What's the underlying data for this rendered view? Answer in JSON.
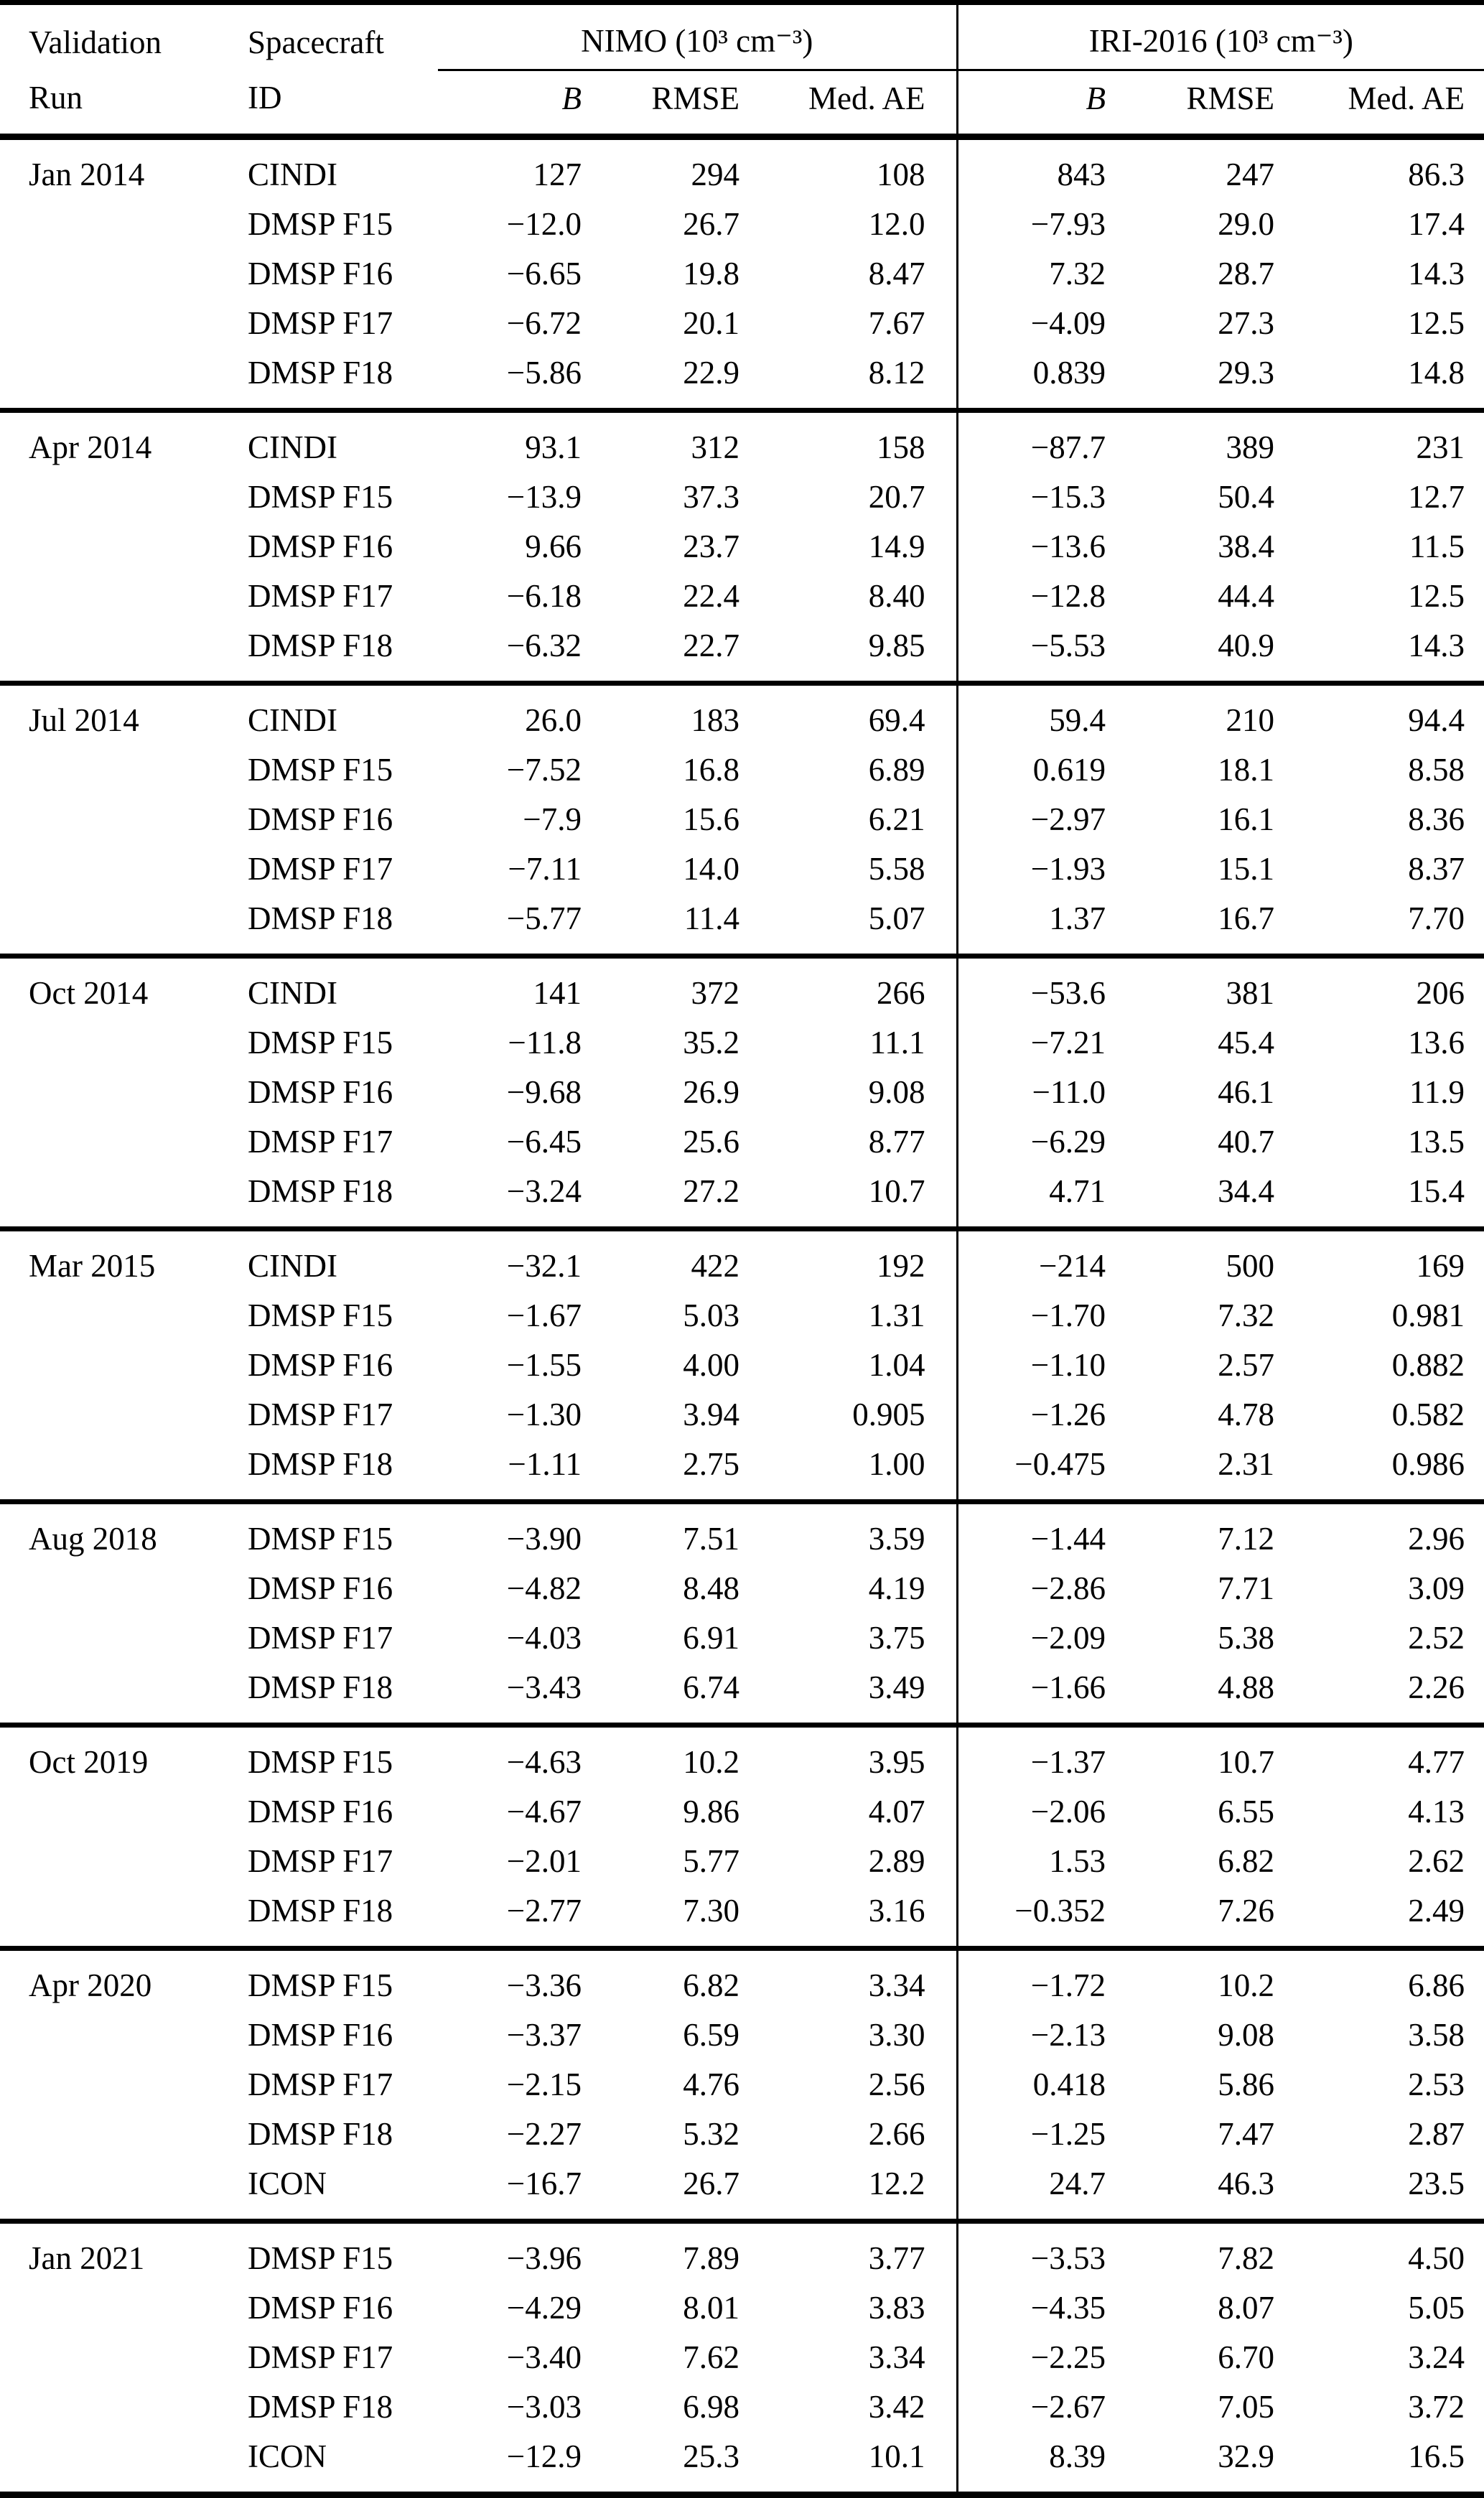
{
  "table": {
    "header": {
      "validation": "Validation",
      "run": "Run",
      "spacecraft": "Spacecraft",
      "id": "ID",
      "nimo_group": "NIMO (10³ cm⁻³)",
      "iri_group": "IRI-2016 (10³ cm⁻³)",
      "sub": [
        "B",
        "RMSE",
        "Med. AE",
        "B",
        "RMSE",
        "Med. AE"
      ]
    },
    "groups": [
      {
        "run": "Jan 2014",
        "rows": [
          {
            "id": "CINDI",
            "nimo": [
              "127",
              "294",
              "108"
            ],
            "iri": [
              "843",
              "247",
              "86.3"
            ]
          },
          {
            "id": "DMSP F15",
            "nimo": [
              "−12.0",
              "26.7",
              "12.0"
            ],
            "iri": [
              "−7.93",
              "29.0",
              "17.4"
            ]
          },
          {
            "id": "DMSP F16",
            "nimo": [
              "−6.65",
              "19.8",
              "8.47"
            ],
            "iri": [
              "7.32",
              "28.7",
              "14.3"
            ]
          },
          {
            "id": "DMSP F17",
            "nimo": [
              "−6.72",
              "20.1",
              "7.67"
            ],
            "iri": [
              "−4.09",
              "27.3",
              "12.5"
            ]
          },
          {
            "id": "DMSP F18",
            "nimo": [
              "−5.86",
              "22.9",
              "8.12"
            ],
            "iri": [
              "0.839",
              "29.3",
              "14.8"
            ]
          }
        ]
      },
      {
        "run": "Apr 2014",
        "rows": [
          {
            "id": "CINDI",
            "nimo": [
              "93.1",
              "312",
              "158"
            ],
            "iri": [
              "−87.7",
              "389",
              "231"
            ]
          },
          {
            "id": "DMSP F15",
            "nimo": [
              "−13.9",
              "37.3",
              "20.7"
            ],
            "iri": [
              "−15.3",
              "50.4",
              "12.7"
            ]
          },
          {
            "id": "DMSP F16",
            "nimo": [
              "9.66",
              "23.7",
              "14.9"
            ],
            "iri": [
              "−13.6",
              "38.4",
              "11.5"
            ]
          },
          {
            "id": "DMSP F17",
            "nimo": [
              "−6.18",
              "22.4",
              "8.40"
            ],
            "iri": [
              "−12.8",
              "44.4",
              "12.5"
            ]
          },
          {
            "id": "DMSP F18",
            "nimo": [
              "−6.32",
              "22.7",
              "9.85"
            ],
            "iri": [
              "−5.53",
              "40.9",
              "14.3"
            ]
          }
        ]
      },
      {
        "run": "Jul 2014",
        "rows": [
          {
            "id": "CINDI",
            "nimo": [
              "26.0",
              "183",
              "69.4"
            ],
            "iri": [
              "59.4",
              "210",
              "94.4"
            ]
          },
          {
            "id": "DMSP F15",
            "nimo": [
              "−7.52",
              "16.8",
              "6.89"
            ],
            "iri": [
              "0.619",
              "18.1",
              "8.58"
            ]
          },
          {
            "id": "DMSP F16",
            "nimo": [
              "−7.9",
              "15.6",
              "6.21"
            ],
            "iri": [
              "−2.97",
              "16.1",
              "8.36"
            ]
          },
          {
            "id": "DMSP F17",
            "nimo": [
              "−7.11",
              "14.0",
              "5.58"
            ],
            "iri": [
              "−1.93",
              "15.1",
              "8.37"
            ]
          },
          {
            "id": "DMSP F18",
            "nimo": [
              "−5.77",
              "11.4",
              "5.07"
            ],
            "iri": [
              "1.37",
              "16.7",
              "7.70"
            ]
          }
        ]
      },
      {
        "run": "Oct 2014",
        "rows": [
          {
            "id": "CINDI",
            "nimo": [
              "141",
              "372",
              "266"
            ],
            "iri": [
              "−53.6",
              "381",
              "206"
            ]
          },
          {
            "id": "DMSP F15",
            "nimo": [
              "−11.8",
              "35.2",
              "11.1"
            ],
            "iri": [
              "−7.21",
              "45.4",
              "13.6"
            ]
          },
          {
            "id": "DMSP F16",
            "nimo": [
              "−9.68",
              "26.9",
              "9.08"
            ],
            "iri": [
              "−11.0",
              "46.1",
              "11.9"
            ]
          },
          {
            "id": "DMSP F17",
            "nimo": [
              "−6.45",
              "25.6",
              "8.77"
            ],
            "iri": [
              "−6.29",
              "40.7",
              "13.5"
            ]
          },
          {
            "id": "DMSP F18",
            "nimo": [
              "−3.24",
              "27.2",
              "10.7"
            ],
            "iri": [
              "4.71",
              "34.4",
              "15.4"
            ]
          }
        ]
      },
      {
        "run": "Mar 2015",
        "rows": [
          {
            "id": "CINDI",
            "nimo": [
              "−32.1",
              "422",
              "192"
            ],
            "iri": [
              "−214",
              "500",
              "169"
            ]
          },
          {
            "id": "DMSP F15",
            "nimo": [
              "−1.67",
              "5.03",
              "1.31"
            ],
            "iri": [
              "−1.70",
              "7.32",
              "0.981"
            ]
          },
          {
            "id": "DMSP F16",
            "nimo": [
              "−1.55",
              "4.00",
              "1.04"
            ],
            "iri": [
              "−1.10",
              "2.57",
              "0.882"
            ]
          },
          {
            "id": "DMSP F17",
            "nimo": [
              "−1.30",
              "3.94",
              "0.905"
            ],
            "iri": [
              "−1.26",
              "4.78",
              "0.582"
            ]
          },
          {
            "id": "DMSP F18",
            "nimo": [
              "−1.11",
              "2.75",
              "1.00"
            ],
            "iri": [
              "−0.475",
              "2.31",
              "0.986"
            ]
          }
        ]
      },
      {
        "run": "Aug 2018",
        "rows": [
          {
            "id": "DMSP F15",
            "nimo": [
              "−3.90",
              "7.51",
              "3.59"
            ],
            "iri": [
              "−1.44",
              "7.12",
              "2.96"
            ]
          },
          {
            "id": "DMSP F16",
            "nimo": [
              "−4.82",
              "8.48",
              "4.19"
            ],
            "iri": [
              "−2.86",
              "7.71",
              "3.09"
            ]
          },
          {
            "id": "DMSP F17",
            "nimo": [
              "−4.03",
              "6.91",
              "3.75"
            ],
            "iri": [
              "−2.09",
              "5.38",
              "2.52"
            ]
          },
          {
            "id": "DMSP F18",
            "nimo": [
              "−3.43",
              "6.74",
              "3.49"
            ],
            "iri": [
              "−1.66",
              "4.88",
              "2.26"
            ]
          }
        ]
      },
      {
        "run": "Oct 2019",
        "rows": [
          {
            "id": "DMSP F15",
            "nimo": [
              "−4.63",
              "10.2",
              "3.95"
            ],
            "iri": [
              "−1.37",
              "10.7",
              "4.77"
            ]
          },
          {
            "id": "DMSP F16",
            "nimo": [
              "−4.67",
              "9.86",
              "4.07"
            ],
            "iri": [
              "−2.06",
              "6.55",
              "4.13"
            ]
          },
          {
            "id": "DMSP F17",
            "nimo": [
              "−2.01",
              "5.77",
              "2.89"
            ],
            "iri": [
              "1.53",
              "6.82",
              "2.62"
            ]
          },
          {
            "id": "DMSP F18",
            "nimo": [
              "−2.77",
              "7.30",
              "3.16"
            ],
            "iri": [
              "−0.352",
              "7.26",
              "2.49"
            ]
          }
        ]
      },
      {
        "run": "Apr 2020",
        "rows": [
          {
            "id": "DMSP F15",
            "nimo": [
              "−3.36",
              "6.82",
              "3.34"
            ],
            "iri": [
              "−1.72",
              "10.2",
              "6.86"
            ]
          },
          {
            "id": "DMSP F16",
            "nimo": [
              "−3.37",
              "6.59",
              "3.30"
            ],
            "iri": [
              "−2.13",
              "9.08",
              "3.58"
            ]
          },
          {
            "id": "DMSP F17",
            "nimo": [
              "−2.15",
              "4.76",
              "2.56"
            ],
            "iri": [
              "0.418",
              "5.86",
              "2.53"
            ]
          },
          {
            "id": "DMSP F18",
            "nimo": [
              "−2.27",
              "5.32",
              "2.66"
            ],
            "iri": [
              "−1.25",
              "7.47",
              "2.87"
            ]
          },
          {
            "id": "ICON",
            "nimo": [
              "−16.7",
              "26.7",
              "12.2"
            ],
            "iri": [
              "24.7",
              "46.3",
              "23.5"
            ]
          }
        ]
      },
      {
        "run": "Jan 2021",
        "rows": [
          {
            "id": "DMSP F15",
            "nimo": [
              "−3.96",
              "7.89",
              "3.77"
            ],
            "iri": [
              "−3.53",
              "7.82",
              "4.50"
            ]
          },
          {
            "id": "DMSP F16",
            "nimo": [
              "−4.29",
              "8.01",
              "3.83"
            ],
            "iri": [
              "−4.35",
              "8.07",
              "5.05"
            ]
          },
          {
            "id": "DMSP F17",
            "nimo": [
              "−3.40",
              "7.62",
              "3.34"
            ],
            "iri": [
              "−2.25",
              "6.70",
              "3.24"
            ]
          },
          {
            "id": "DMSP F18",
            "nimo": [
              "−3.03",
              "6.98",
              "3.42"
            ],
            "iri": [
              "−2.67",
              "7.05",
              "3.72"
            ]
          },
          {
            "id": "ICON",
            "nimo": [
              "−12.9",
              "25.3",
              "10.1"
            ],
            "iri": [
              "8.39",
              "32.9",
              "16.5"
            ]
          }
        ]
      }
    ]
  }
}
